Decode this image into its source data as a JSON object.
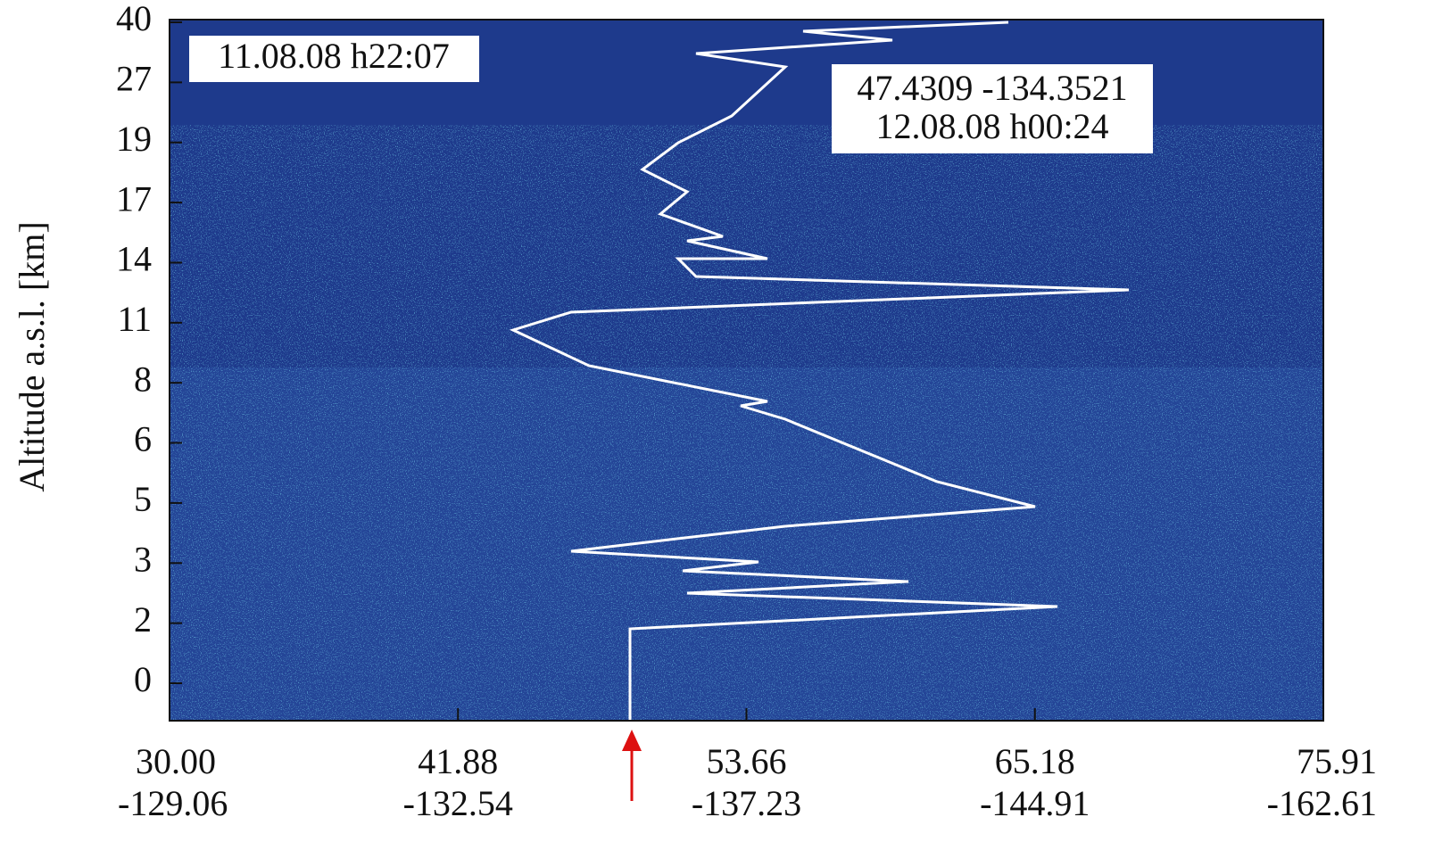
{
  "chart_data": {
    "type": "heatmap",
    "ylabel": "Altitude a.s.l. [km]",
    "yticks": [
      40,
      27,
      19,
      17,
      14,
      11,
      8,
      6,
      5,
      3,
      2,
      0
    ],
    "xticks": [
      [
        "30.00",
        "-129.06"
      ],
      [
        "41.88",
        "-132.54"
      ],
      [
        "53.66",
        "-137.23"
      ],
      [
        "65.18",
        "-144.91"
      ],
      [
        "75.91",
        "-162.61"
      ]
    ],
    "annotations": [
      "11.08.08 h22:07",
      "47.4309  -134.3521",
      "12.08.08 h00:24"
    ],
    "color": "#1e3a8c"
  }
}
